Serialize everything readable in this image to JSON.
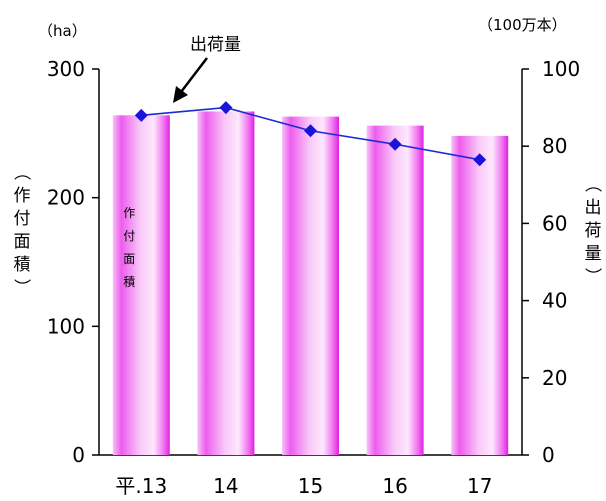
{
  "chart_data": {
    "type": "bar+line",
    "categories": [
      "平.13",
      "14",
      "15",
      "16",
      "17"
    ],
    "bar_series": {
      "name": "作付面積",
      "axis": "left",
      "values": [
        264,
        267,
        263,
        256,
        248
      ],
      "color": "#ee22ee"
    },
    "line_series": {
      "name": "出荷量",
      "axis": "right",
      "values": [
        88,
        90,
        84,
        80.5,
        76.5
      ],
      "color": "#1f2ad6",
      "marker_color": "#1a14d8"
    },
    "left_axis": {
      "unit": "（ha）",
      "title": "（作付面積）",
      "ylim": [
        0,
        300
      ],
      "ticks": [
        0,
        100,
        200,
        300
      ],
      "tick_labels": [
        "0",
        "100",
        "200",
        "300"
      ]
    },
    "right_axis": {
      "unit": "（100万本）",
      "title": "（出荷量）",
      "ylim": [
        0,
        100
      ],
      "ticks": [
        0,
        20,
        40,
        60,
        80,
        100
      ],
      "tick_labels": [
        "0",
        "20",
        "40",
        "60",
        "80",
        "100"
      ]
    },
    "bar_inner_label": "作付面積",
    "line_annotation": "出荷量",
    "grid": false,
    "legend": "none"
  }
}
